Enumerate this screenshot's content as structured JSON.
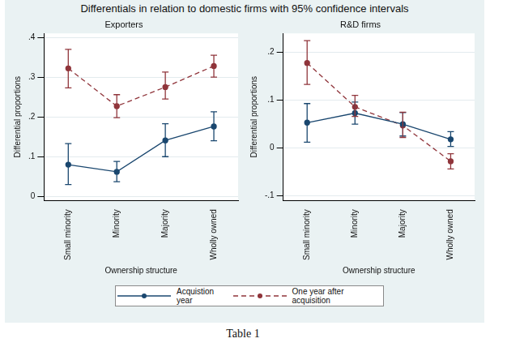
{
  "title": "Differentials in relation to domestic firms with 95% confidence intervals",
  "caption": "Table 1",
  "legend": "bottom",
  "chart_data": [
    {
      "type": "line",
      "title": "Exporters",
      "x_label": "Ownership structure",
      "y_label": "Differential proportions",
      "categories": [
        "Small minority",
        "Minority",
        "Majority",
        "Wholly owned"
      ],
      "ylim": [
        -0.01,
        0.41
      ],
      "yticks": [
        0,
        {
          "value": 0.1,
          "label": ".1"
        },
        {
          "value": 0.2,
          "label": ".2"
        },
        {
          "value": 0.3,
          "label": ".3"
        },
        {
          "value": 0.4,
          "label": ".4"
        }
      ],
      "grid": true,
      "series": [
        {
          "name": "Acquistion year",
          "color": "#1a476f",
          "line_style": "solid",
          "marker": "circle",
          "values": [
            0.08,
            0.062,
            0.141,
            0.176
          ],
          "ci_low": [
            0.03,
            0.037,
            0.1,
            0.14
          ],
          "ci_high": [
            0.133,
            0.088,
            0.183,
            0.213
          ]
        },
        {
          "name": "One year after acquisition",
          "color": "#90353b",
          "line_style": "dashed",
          "marker": "circle",
          "values": [
            0.322,
            0.227,
            0.275,
            0.328
          ],
          "ci_low": [
            0.273,
            0.198,
            0.245,
            0.3
          ],
          "ci_high": [
            0.37,
            0.256,
            0.313,
            0.355
          ]
        }
      ]
    },
    {
      "type": "line",
      "title": "R&D firms",
      "x_label": "Ownership structure",
      "y_label": "Differential proportions",
      "categories": [
        "Small minority",
        "Minority",
        "Majority",
        "Wholly owned"
      ],
      "ylim": [
        -0.11,
        0.24
      ],
      "yticks": [
        {
          "value": -0.1,
          "label": "-.1"
        },
        0,
        {
          "value": 0.1,
          "label": ".1"
        },
        {
          "value": 0.2,
          "label": ".2"
        }
      ],
      "grid": true,
      "series": [
        {
          "name": "Acquistion year",
          "color": "#1a476f",
          "line_style": "solid",
          "marker": "circle",
          "values": [
            0.053,
            0.073,
            0.05,
            0.018
          ],
          "ci_low": [
            0.012,
            0.05,
            0.025,
            0.003
          ],
          "ci_high": [
            0.093,
            0.096,
            0.074,
            0.034
          ]
        },
        {
          "name": "One year after acquisition",
          "color": "#90353b",
          "line_style": "dashed",
          "marker": "circle",
          "values": [
            0.178,
            0.086,
            0.047,
            -0.028
          ],
          "ci_low": [
            0.133,
            0.066,
            0.022,
            -0.044
          ],
          "ci_high": [
            0.225,
            0.11,
            0.075,
            -0.012
          ]
        }
      ]
    }
  ]
}
